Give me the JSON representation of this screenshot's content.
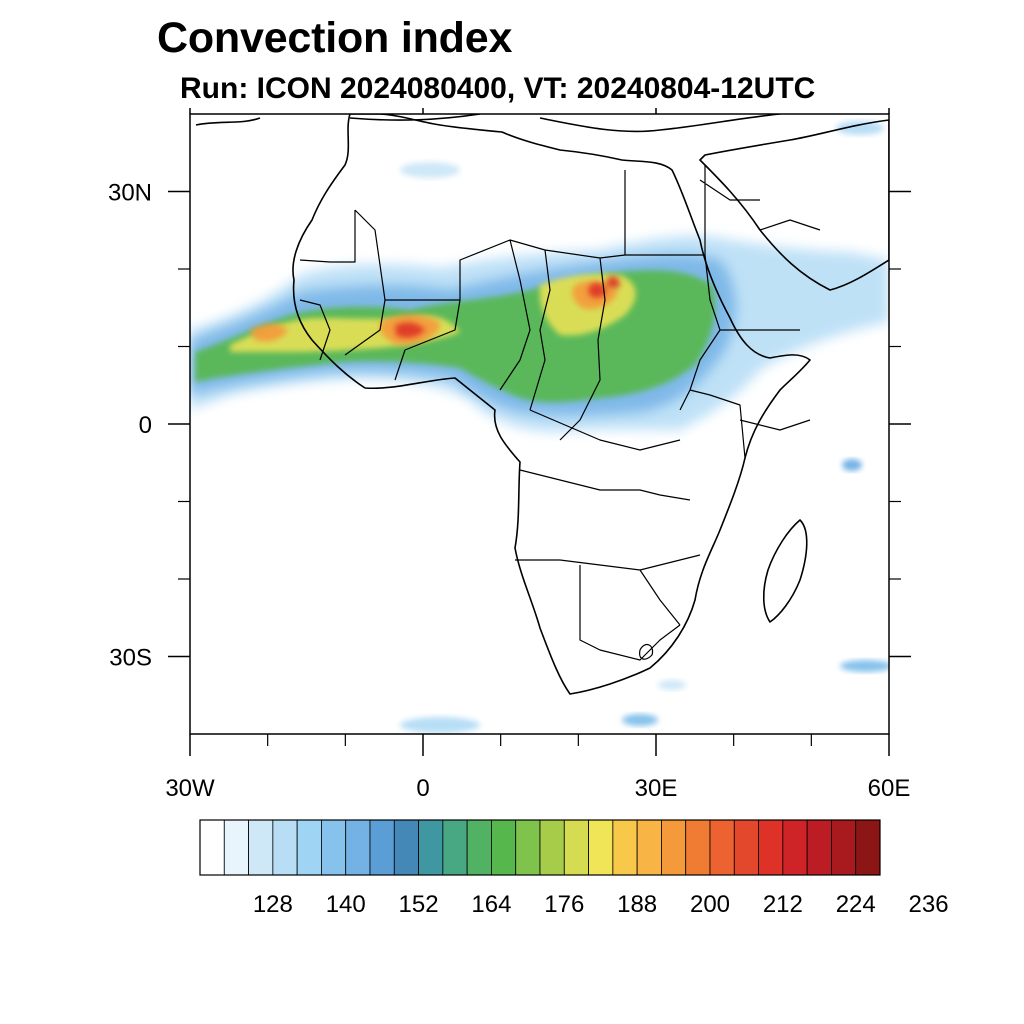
{
  "title": "Convection index",
  "subtitle": "Run: ICON 2024080400,  VT: 20240804-12UTC",
  "map": {
    "lon_range": [
      -30,
      60
    ],
    "lat_range": [
      -40,
      40
    ],
    "lon_ticks": [
      {
        "lon": -30,
        "label": "30W"
      },
      {
        "lon": 0,
        "label": "0"
      },
      {
        "lon": 30,
        "label": "30E"
      },
      {
        "lon": 60,
        "label": "60E"
      }
    ],
    "lat_ticks": [
      {
        "lat": 30,
        "label": "30N"
      },
      {
        "lat": 0,
        "label": "0"
      },
      {
        "lat": -30,
        "label": "30S"
      }
    ],
    "minor_lon_ticks": [
      -20,
      -10,
      10,
      20,
      40,
      50
    ],
    "minor_lat_ticks": [
      20,
      10,
      -10,
      -20
    ]
  },
  "colorbar": {
    "colors": [
      "#ffffff",
      "#e8f5fc",
      "#cfe8f8",
      "#b8def6",
      "#9fd4f4",
      "#86c2ec",
      "#74b2e6",
      "#5b9ed5",
      "#4488b8",
      "#3f97a2",
      "#48a883",
      "#52b263",
      "#56b84c",
      "#7fc24c",
      "#a6cc4a",
      "#d6dc52",
      "#f0e457",
      "#f8c84a",
      "#f8b445",
      "#f59a3b",
      "#f07c34",
      "#ec6230",
      "#e4482c",
      "#de3228",
      "#ce2428",
      "#bc1c24",
      "#a81a1e",
      "#8c1616"
    ],
    "tick_labels": [
      "128",
      "140",
      "152",
      "164",
      "176",
      "188",
      "200",
      "212",
      "224",
      "236"
    ]
  }
}
